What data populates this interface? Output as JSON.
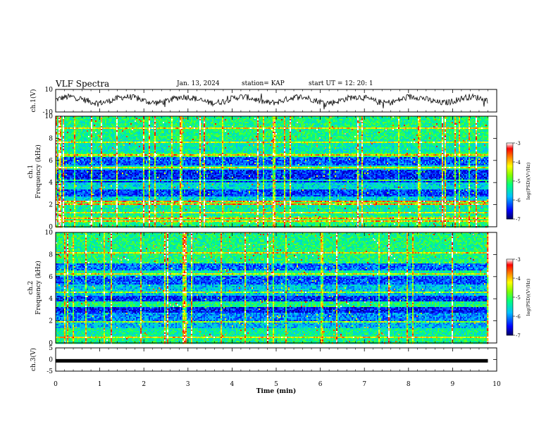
{
  "header": {
    "title": "VLF Spectra",
    "date": "Jan. 13, 2024",
    "station": "station= KAP",
    "start": "start  UT  =   12: 20: 1"
  },
  "chart_data": [
    {
      "type": "line",
      "panel": "ch1-waveform",
      "ylabel": "ch.1(V)",
      "ylim": [
        -10,
        10
      ],
      "yticks": [
        "10",
        "-10"
      ],
      "xlim": [
        0,
        10
      ],
      "data_end_min": 9.8,
      "description_values": "noisy waveform oscillating roughly between -5 and +6 V with slow ~1.3 min undulation"
    },
    {
      "type": "heatmap",
      "panel": "ch1-spectrogram",
      "ylabel_line1": "ch.1",
      "ylabel_line2": "Frequency (kHz)",
      "ylim": [
        0,
        10
      ],
      "yticks": [
        "0",
        "2",
        "4",
        "6",
        "8",
        "10"
      ],
      "xlim": [
        0,
        10
      ],
      "data_end_min": 9.8,
      "colorbar": {
        "label": "log(PSD)(V²/Hz)",
        "range": [
          -7,
          -3
        ],
        "ticks": [
          "-3",
          "-4",
          "-5",
          "-6",
          "-7"
        ],
        "colors": [
          "#000060",
          "#0000ff",
          "#00c0ff",
          "#00ff80",
          "#80ff00",
          "#ffff00",
          "#ff8000",
          "#ff0000",
          "#ffffff"
        ]
      },
      "bands": [
        {
          "f0": 0.0,
          "f1": 0.3,
          "level": 0.45
        },
        {
          "f0": 0.3,
          "f1": 1.0,
          "level": 0.5
        },
        {
          "f0": 1.0,
          "f1": 2.0,
          "level": 0.42
        },
        {
          "f0": 2.0,
          "f1": 2.3,
          "level": 0.55
        },
        {
          "f0": 2.3,
          "f1": 2.8,
          "level": 0.35
        },
        {
          "f0": 2.8,
          "f1": 3.4,
          "level": 0.18
        },
        {
          "f0": 3.4,
          "f1": 4.0,
          "level": 0.35
        },
        {
          "f0": 4.0,
          "f1": 5.1,
          "level": 0.15
        },
        {
          "f0": 5.1,
          "f1": 5.6,
          "level": 0.4
        },
        {
          "f0": 5.6,
          "f1": 6.3,
          "level": 0.2
        },
        {
          "f0": 6.3,
          "f1": 6.7,
          "level": 0.5
        },
        {
          "f0": 6.7,
          "f1": 7.8,
          "level": 0.4
        },
        {
          "f0": 7.8,
          "f1": 10.0,
          "level": 0.45
        }
      ],
      "lines_khz": [
        0.45,
        0.8,
        1.3,
        2.0,
        2.25,
        3.5,
        4.2,
        5.3,
        6.55,
        7.6,
        8.9
      ]
    },
    {
      "type": "heatmap",
      "panel": "ch2-spectrogram",
      "ylabel_line1": "ch.2",
      "ylabel_line2": "Frequency (kHz)",
      "ylim": [
        0,
        10
      ],
      "yticks": [
        "0",
        "2",
        "4",
        "6",
        "8",
        "10"
      ],
      "xlim": [
        0,
        10
      ],
      "data_end_min": 9.8,
      "colorbar": {
        "label": "log(PSD)(V²/Hz)",
        "range": [
          -7,
          -3
        ],
        "ticks": [
          "-3",
          "-4",
          "-5",
          "-6",
          "-7"
        ]
      },
      "bands": [
        {
          "f0": 0.0,
          "f1": 0.4,
          "level": 0.45
        },
        {
          "f0": 0.4,
          "f1": 1.3,
          "level": 0.42
        },
        {
          "f0": 1.3,
          "f1": 2.0,
          "level": 0.3
        },
        {
          "f0": 2.0,
          "f1": 2.7,
          "level": 0.25
        },
        {
          "f0": 2.7,
          "f1": 3.3,
          "level": 0.14
        },
        {
          "f0": 3.3,
          "f1": 3.7,
          "level": 0.45
        },
        {
          "f0": 3.7,
          "f1": 4.3,
          "level": 0.16
        },
        {
          "f0": 4.3,
          "f1": 5.3,
          "level": 0.32
        },
        {
          "f0": 5.3,
          "f1": 6.0,
          "level": 0.2
        },
        {
          "f0": 6.0,
          "f1": 6.5,
          "level": 0.42
        },
        {
          "f0": 6.5,
          "f1": 7.3,
          "level": 0.22
        },
        {
          "f0": 7.3,
          "f1": 10.0,
          "level": 0.45
        }
      ],
      "lines_khz": [
        0.5,
        1.9,
        3.5,
        4.6,
        6.3,
        7.3,
        8.1
      ]
    },
    {
      "type": "line",
      "panel": "ch3-waveform",
      "ylabel": "ch.3(V)",
      "ylim": [
        -5,
        5
      ],
      "yticks": [
        "5",
        "0",
        "-5"
      ],
      "xlim": [
        0,
        10
      ],
      "data_end_min": 9.8,
      "band": [
        -0.7,
        0.2
      ],
      "xlabel": "Time  (min)",
      "xticks": [
        "0",
        "1",
        "2",
        "3",
        "4",
        "5",
        "6",
        "7",
        "8",
        "9",
        "10"
      ]
    }
  ]
}
